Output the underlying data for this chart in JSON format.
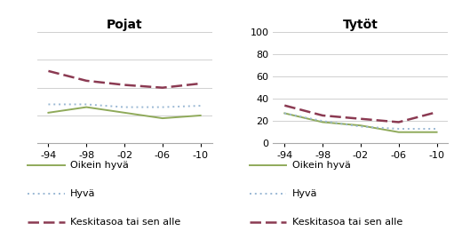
{
  "x_labels": [
    "-94",
    "-98",
    "-02",
    "-06",
    "-10"
  ],
  "x_values": [
    0,
    1,
    2,
    3,
    4
  ],
  "pojat": {
    "title": "Pojat",
    "oikein_hyva": [
      22,
      26,
      22,
      18,
      20
    ],
    "hyva": [
      28,
      28,
      26,
      26,
      27
    ],
    "keskitasoa": [
      52,
      45,
      42,
      40,
      43
    ]
  },
  "tytot": {
    "title": "Tytöt",
    "oikein_hyva": [
      27,
      19,
      16,
      10,
      10
    ],
    "hyva": [
      27,
      20,
      15,
      13,
      13
    ],
    "keskitasoa": [
      34,
      25,
      22,
      19,
      28
    ]
  },
  "ylim_pojat": [
    0,
    80
  ],
  "ylim_tytot": [
    0,
    100
  ],
  "yticks_pojat": [],
  "yticks_tytot": [
    0,
    20,
    40,
    60,
    80,
    100
  ],
  "color_oikein_hyva": "#8faa5a",
  "color_hyva": "#9ab8d4",
  "color_keskitasoa": "#8b3a52",
  "legend_labels": [
    "Oikein hyvä",
    "Hyvä",
    "Keskitasoa tai sen alle"
  ],
  "background_color": "#ffffff",
  "gridline_color": "#d0d0d0"
}
